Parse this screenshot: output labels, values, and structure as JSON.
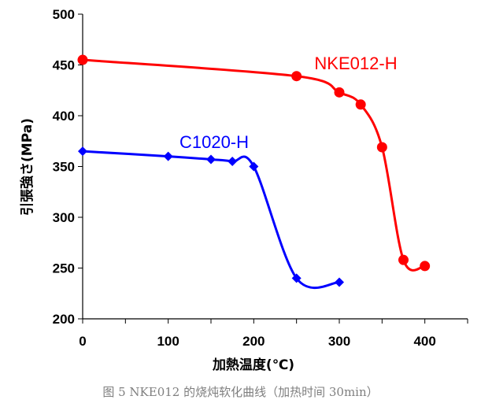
{
  "caption": "图 5 NKE012 的烧炖软化曲线（加热时间 30min）",
  "chart_data": {
    "type": "line",
    "title": "",
    "xlabel": "加熱温度(℃)",
    "ylabel": "引張強さ(MPa)",
    "xlim": [
      0,
      450
    ],
    "ylim": [
      200,
      500
    ],
    "xticks": [
      0,
      100,
      200,
      300,
      400
    ],
    "yticks": [
      200,
      250,
      300,
      350,
      400,
      450,
      500
    ],
    "grid": false,
    "legend": "none",
    "series": [
      {
        "name": "NKE012-H",
        "color": "#ff0000",
        "marker": "circle",
        "x": [
          0,
          250,
          300,
          325,
          350,
          375,
          400
        ],
        "y": [
          455,
          439,
          423,
          411,
          369,
          258,
          252
        ]
      },
      {
        "name": "C1020-H",
        "color": "#0000ff",
        "marker": "diamond",
        "x": [
          0,
          100,
          150,
          175,
          200,
          250,
          300
        ],
        "y": [
          365,
          360,
          357,
          355,
          350,
          240,
          236
        ]
      }
    ]
  }
}
